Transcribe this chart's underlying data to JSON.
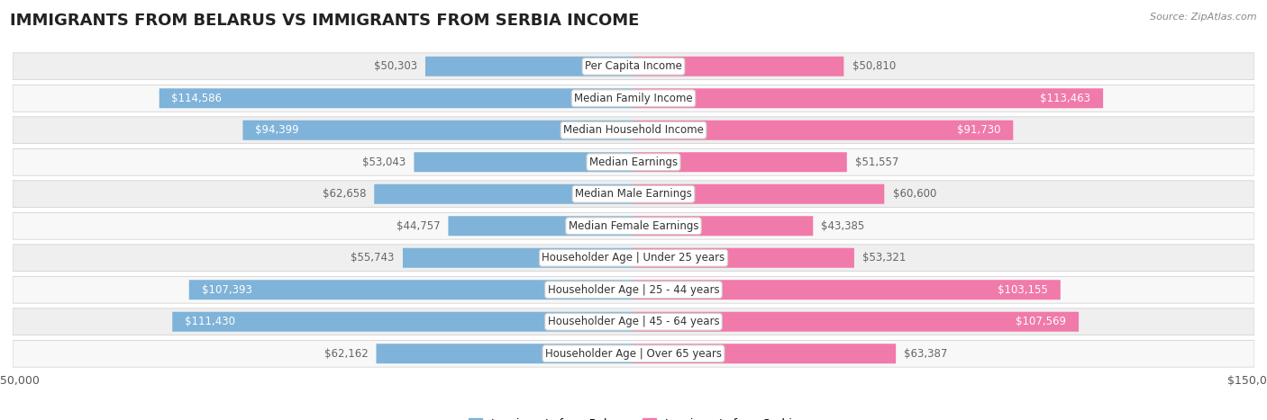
{
  "title": "IMMIGRANTS FROM BELARUS VS IMMIGRANTS FROM SERBIA INCOME",
  "source": "Source: ZipAtlas.com",
  "categories": [
    "Per Capita Income",
    "Median Family Income",
    "Median Household Income",
    "Median Earnings",
    "Median Male Earnings",
    "Median Female Earnings",
    "Householder Age | Under 25 years",
    "Householder Age | 25 - 44 years",
    "Householder Age | 45 - 64 years",
    "Householder Age | Over 65 years"
  ],
  "belarus_values": [
    50303,
    114586,
    94399,
    53043,
    62658,
    44757,
    55743,
    107393,
    111430,
    62162
  ],
  "serbia_values": [
    50810,
    113463,
    91730,
    51557,
    60600,
    43385,
    53321,
    103155,
    107569,
    63387
  ],
  "belarus_labels": [
    "$50,303",
    "$114,586",
    "$94,399",
    "$53,043",
    "$62,658",
    "$44,757",
    "$55,743",
    "$107,393",
    "$111,430",
    "$62,162"
  ],
  "serbia_labels": [
    "$50,810",
    "$113,463",
    "$91,730",
    "$51,557",
    "$60,600",
    "$43,385",
    "$53,321",
    "$103,155",
    "$107,569",
    "$63,387"
  ],
  "belarus_color": "#7fb3d9",
  "serbia_color": "#f07aaa",
  "belarus_color_light": "#aecce8",
  "serbia_color_light": "#f4aac8",
  "label_inside_color": "#ffffff",
  "label_outside_color": "#666666",
  "inside_threshold": 75000,
  "max_value": 150000,
  "legend_belarus": "Immigrants from Belarus",
  "legend_serbia": "Immigrants from Serbia",
  "row_bg_odd": "#efefef",
  "row_bg_even": "#f8f8f8",
  "bar_height": 0.62,
  "title_fontsize": 13,
  "label_fontsize": 8.5,
  "axis_label_fontsize": 9,
  "cat_fontsize": 8.5
}
